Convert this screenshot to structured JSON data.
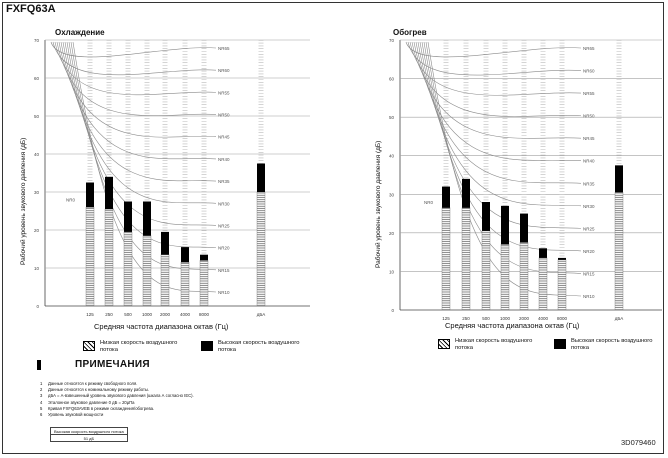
{
  "header": {
    "model": "FXFQ63A"
  },
  "charts": [
    {
      "title": "Охлаждение",
      "ylabel": "Рабочий уровень звукового давления (дБ)",
      "xlabel": "Средняя частота диапазона октав (Гц)"
    },
    {
      "title": "Обогрев",
      "ylabel": "Рабочий уровень звукового давления (дБ)",
      "xlabel": "Средняя частота диапазона октав (Гц)"
    }
  ],
  "chart_data": [
    {
      "type": "bar",
      "title": "Охлаждение",
      "xlabel": "Средняя частота диапазона октав (Гц)",
      "ylabel": "Рабочий уровень звукового давления (дБ)",
      "categories": [
        "125",
        "250",
        "500",
        "1000",
        "2000",
        "4000",
        "8000",
        "дБА"
      ],
      "ylim": [
        0,
        70
      ],
      "yticks": [
        "0",
        "10",
        "20",
        "30",
        "40",
        "50",
        "60",
        "70"
      ],
      "series": [
        {
          "name": "Низкая скорость воздушного потока",
          "values": [
            26,
            25.5,
            19.5,
            18.5,
            13.5,
            11.5,
            12,
            30
          ]
        },
        {
          "name": "Высокая скорость воздушного потока",
          "values": [
            32.5,
            34,
            27.5,
            27.5,
            19.5,
            15.5,
            13.5,
            37.5
          ]
        }
      ],
      "nr_curves": [
        "NR65",
        "NR60",
        "NR55",
        "NR50",
        "NR45",
        "NR40",
        "NR35",
        "NR30",
        "NR25",
        "NR20",
        "NR15",
        "NR10"
      ],
      "nr_left_label": "NR0",
      "grid": true
    },
    {
      "type": "bar",
      "title": "Обогрев",
      "xlabel": "Средняя частота диапазона октав (Гц)",
      "ylabel": "Рабочий уровень звукового давления (дБ)",
      "categories": [
        "125",
        "250",
        "500",
        "1000",
        "2000",
        "4000",
        "8000",
        "дБА"
      ],
      "ylim": [
        0,
        70
      ],
      "yticks": [
        "0",
        "10",
        "20",
        "30",
        "40",
        "50",
        "60",
        "70"
      ],
      "series": [
        {
          "name": "Низкая скорость воздушного потока",
          "values": [
            26.5,
            26.5,
            20.5,
            17,
            17.5,
            13.5,
            13,
            30.5
          ]
        },
        {
          "name": "Высокая скорость воздушного потока",
          "values": [
            32,
            34,
            28,
            27,
            25,
            16,
            13.5,
            37.5
          ]
        }
      ],
      "nr_curves": [
        "NR65",
        "NR60",
        "NR55",
        "NR50",
        "NR45",
        "NR40",
        "NR35",
        "NR30",
        "NR25",
        "NR20",
        "NR15",
        "NR10"
      ],
      "nr_left_label": "NR0",
      "grid": true
    }
  ],
  "legend": {
    "low": "Низкая скорость воздушного потока",
    "high": "Высокая скорость воздушного потока"
  },
  "notes": {
    "title": "ПРИМЕЧАНИЯ",
    "items": [
      {
        "num": "1",
        "text": "Данные относятся к режиму свободного поля."
      },
      {
        "num": "2",
        "text": "Данные относятся к номинальному режиму работы."
      },
      {
        "num": "3",
        "text": "дБА = А-взвешенный уровень звукового давления (шкала А согласно IEC)."
      },
      {
        "num": "4",
        "text": "Эталонное звуковое давление 0 дБ = 20μПа"
      },
      {
        "num": "5",
        "text": "Кривая FXFQ63AVEB в режиме охлаждения/обогрева."
      },
      {
        "num": "6",
        "text": "Уровень звуковой мощности"
      }
    ],
    "power_table": {
      "header": "Высокая скорость воздушного потока",
      "value": "51 дБ"
    }
  },
  "footer": {
    "doc_code": "3D079460"
  },
  "colors": {
    "grid": "#a0a0a0",
    "curve": "#8a8a8a",
    "bar_high": "#000000",
    "bar_low_hatch": "#000000"
  }
}
